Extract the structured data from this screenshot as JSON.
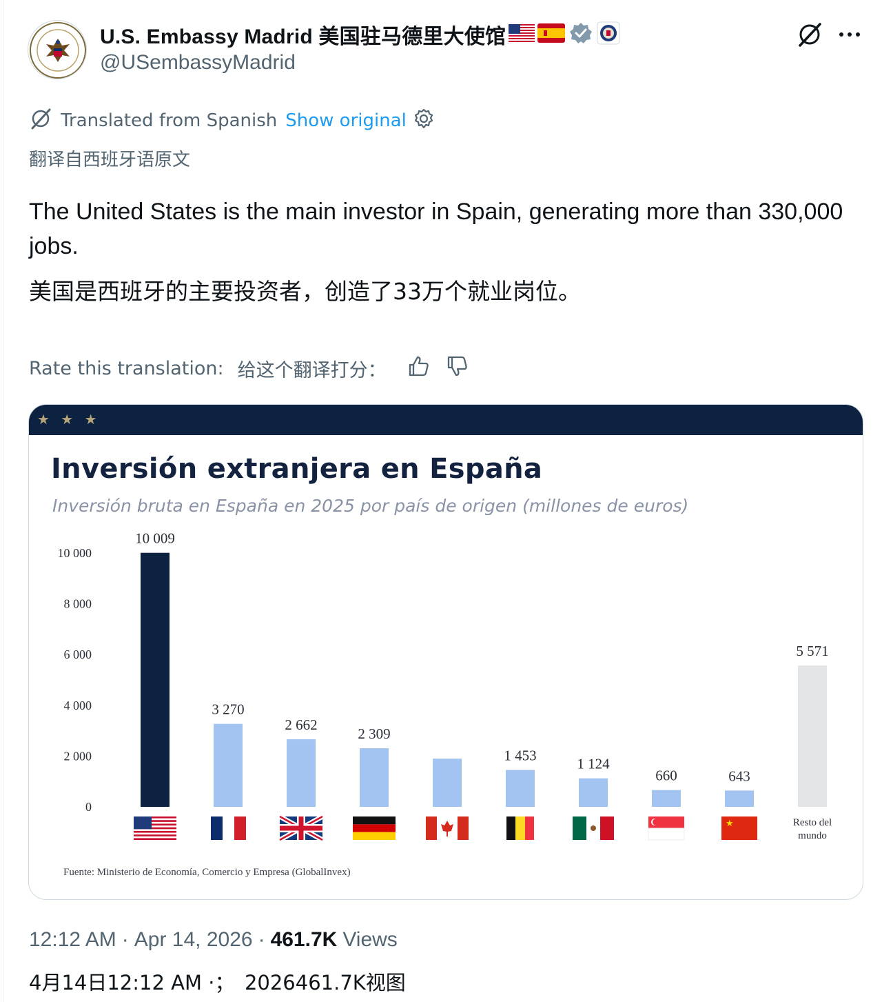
{
  "header": {
    "display_name": "U.S. Embassy Madrid 美国驻马德里大使馆",
    "handle": "@USembassyMadrid",
    "avatar_icon": "embassy-seal-icon",
    "flags": [
      "us-flag-icon",
      "spain-flag-icon"
    ],
    "verified_icon": "verified-badge-icon",
    "gov_icon": "state-department-seal-icon",
    "grok_icon": "grok-icon",
    "more_icon": "more-dots-icon"
  },
  "translation": {
    "label": "Translated from Spanish",
    "show_original": "Show original",
    "settings_icon": "gear-icon",
    "label_cn": "翻译自西班牙语原文"
  },
  "tweet": {
    "text_en": "The United States is the main investor in Spain, generating more than 330,000 jobs.",
    "text_cn": "美国是西班牙的主要投资者，创造了33万个就业岗位。"
  },
  "rate": {
    "label": "Rate this translation:",
    "label_cn": "给这个翻译打分：",
    "up_icon": "thumbs-up-icon",
    "down_icon": "thumbs-down-icon"
  },
  "media": {
    "stars": "★ ★ ★",
    "source": "Fuente: Ministerio de Economía, Comercio y Empresa (GlobalInvex)"
  },
  "chart_data": {
    "type": "bar",
    "title": "Inversión extranjera en España",
    "subtitle": "Inversión bruta en España en 2025 por país de origen (millones de euros)",
    "ylim": [
      0,
      10000
    ],
    "yticks": [
      "0",
      "2 000",
      "4 000",
      "6 000",
      "8 000",
      "10 000"
    ],
    "ytick_values": [
      0,
      2000,
      4000,
      6000,
      8000,
      10000
    ],
    "grid": false,
    "legend": "none",
    "categories": [
      "United States",
      "France",
      "United Kingdom",
      "Germany",
      "Canada",
      "Belgium",
      "Mexico",
      "Singapore",
      "China",
      "Resto del mundo"
    ],
    "category_icons": [
      "us-flag-icon",
      "france-flag-icon",
      "uk-flag-icon",
      "germany-flag-icon",
      "canada-flag-icon",
      "belgium-flag-icon",
      "mexico-flag-icon",
      "singapore-flag-icon",
      "china-flag-icon",
      ""
    ],
    "rest_label": "Resto del mundo",
    "values": [
      10009,
      3270,
      2662,
      2309,
      1900,
      1453,
      1124,
      660,
      643,
      5571
    ],
    "value_labels": [
      "10 009",
      "3 270",
      "2 662",
      "2 309",
      "",
      "1 453",
      "1 124",
      "660",
      "643",
      "5 571"
    ],
    "colors": [
      "#0c2240",
      "#a3c4f0",
      "#a3c4f0",
      "#a3c4f0",
      "#a3c4f0",
      "#a3c4f0",
      "#a3c4f0",
      "#a3c4f0",
      "#a3c4f0",
      "#e4e5e7"
    ]
  },
  "meta": {
    "time": "12:12 AM",
    "date": "Apr 14, 2026",
    "views_count": "461.7K",
    "views_label": "Views",
    "dot": "·",
    "line_cn": "4月14日12:12 AM ·；　2026461.7K视图"
  }
}
